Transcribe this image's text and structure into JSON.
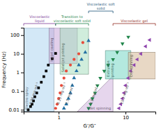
{
  "chart_data": {
    "type": "scatter",
    "xlabel": "G’/G″",
    "ylabel": "Frequency (Hz)",
    "log": true,
    "grid": false,
    "xlim": [
      0.3,
      28
    ],
    "ylim": [
      0.008,
      250
    ],
    "xticks": [
      1,
      10
    ],
    "yticks": [
      0.01,
      0.1,
      1,
      10,
      100
    ],
    "series": [
      {
        "name": "0.06 mg ml⁻¹",
        "color": "#000000",
        "marker": "square",
        "x": [
          0.35,
          0.38,
          0.4,
          0.42,
          0.44,
          0.47,
          0.5,
          0.55,
          0.6,
          0.65,
          0.7,
          0.8,
          0.9
        ],
        "values": [
          0.01,
          0.015,
          0.02,
          0.03,
          0.05,
          0.08,
          0.15,
          0.3,
          0.6,
          1.2,
          2.5,
          5.5,
          10.5
        ]
      },
      {
        "name": "0.25 mg ml⁻¹",
        "color": "#e74c3c",
        "marker": "circle",
        "x": [
          0.9,
          0.95,
          1.0,
          1.05,
          1.1,
          1.2,
          1.3,
          1.5,
          1.7,
          2.0,
          2.3
        ],
        "values": [
          0.012,
          0.02,
          0.04,
          0.08,
          0.2,
          0.5,
          1.2,
          2.5,
          5.0,
          10.0,
          40.0
        ]
      },
      {
        "name": "1.5 mg ml⁻¹",
        "color": "#2471a3",
        "marker": "triangle-up",
        "x": [
          1.2,
          1.3,
          1.4,
          1.5,
          1.6,
          1.7,
          1.85,
          2.0,
          2.2,
          2.5,
          2.8
        ],
        "values": [
          0.012,
          0.02,
          0.04,
          0.08,
          0.2,
          0.5,
          1.2,
          2.5,
          5.0,
          12.0,
          50.0
        ]
      },
      {
        "name": "4.5 mg ml⁻¹",
        "color": "#1e8449",
        "marker": "triangle-down",
        "x": [
          2.8,
          3.0,
          3.2,
          3.5,
          3.8,
          4.2,
          4.8,
          5.5,
          6.5,
          7.5,
          9.0,
          11.0
        ],
        "values": [
          0.012,
          0.02,
          0.04,
          0.08,
          0.2,
          0.5,
          1.2,
          2.5,
          5.0,
          12.0,
          35.0,
          80.0
        ]
      },
      {
        "name": "13.3 mg ml⁻¹",
        "color": "#8e44ad",
        "marker": "triangle-left",
        "x": [
          8.0,
          8.5,
          9.0,
          9.5,
          10.0,
          11.0,
          12.0,
          13.5,
          15.0,
          17.0,
          20.0,
          23.0
        ],
        "values": [
          0.012,
          0.02,
          0.04,
          0.08,
          0.2,
          0.5,
          1.2,
          2.5,
          5.0,
          10.0,
          25.0,
          55.0
        ]
      }
    ],
    "regions": [
      {
        "label": "Electro spray",
        "x": [
          0.3,
          0.85,
          0.85,
          0.3
        ],
        "y": [
          0.008,
          0.008,
          250.008,
          250.008
        ],
        "color": "#aed6f1"
      },
      {
        "label": "Inkjet coating",
        "x": [
          0.72,
          1.9,
          1.9,
          0.72
        ],
        "y": [
          3.0,
          3.0,
          250,
          250
        ],
        "color": "#c8a8d8"
      },
      {
        "label": "Solid-Jet printing",
        "x": [
          1.05,
          2.8,
          2.8,
          1.05
        ],
        "y": [
          0.8,
          0.8,
          250,
          250
        ],
        "color": "#a9dfbf"
      },
      {
        "label": "Wet spinning",
        "x": [
          1.9,
          6.5,
          6.5
        ],
        "y": [
          0.008,
          0.008,
          0.65
        ],
        "color": "#d2b4de"
      },
      {
        "label": "Extrusion\nprinting",
        "x": [
          5.0,
          12.0,
          12.0,
          5.0
        ],
        "y": [
          0.45,
          0.45,
          15.0,
          15.0
        ],
        "color": "#76d7c4"
      },
      {
        "label": "Dry-spinning",
        "x": [
          11.0,
          28.0,
          28.0,
          11.0
        ],
        "y": [
          0.45,
          0.45,
          12.0,
          12.0
        ],
        "color": "#d5b896"
      }
    ],
    "brackets": [
      {
        "label": "Viscoelastic\nliquid",
        "x": [
          0.3,
          0.9
        ],
        "color": "#7d3c98"
      },
      {
        "label": "Transition to\nviscoelastic soft solid",
        "x": [
          0.9,
          2.8
        ],
        "color": "#1e8449"
      },
      {
        "label": "Viscoelastic soft\nsolid",
        "x": [
          2.8,
          6.5
        ],
        "color": "#1a5276"
      },
      {
        "label": "Viscoelastic gel",
        "x": [
          6.5,
          28.0
        ],
        "color": "#922b21"
      }
    ]
  }
}
